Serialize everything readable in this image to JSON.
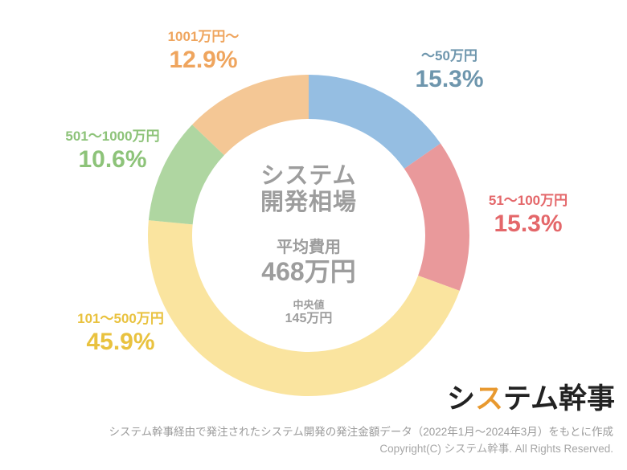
{
  "chart_data": {
    "type": "pie",
    "donut": true,
    "start_angle_deg": 0,
    "direction": "clockwise",
    "title": "システム開発相場",
    "segments": [
      {
        "label": "～50万円",
        "value": 15.3,
        "pct_text": "15.3%",
        "color": "#95bee2",
        "label_color": "#6e96ad"
      },
      {
        "label": "51～100万円",
        "value": 15.3,
        "pct_text": "15.3%",
        "color": "#e9999b",
        "label_color": "#e4676a"
      },
      {
        "label": "101～500万円",
        "value": 45.9,
        "pct_text": "45.9%",
        "color": "#fae49f",
        "label_color": "#e9c23f"
      },
      {
        "label": "501～1000万円",
        "value": 10.6,
        "pct_text": "10.6%",
        "color": "#afd6a1",
        "label_color": "#8dc379"
      },
      {
        "label": "1001万円～",
        "value": 12.9,
        "pct_text": "12.9%",
        "color": "#f4c795",
        "label_color": "#efa55e"
      }
    ],
    "center": {
      "title_line1": "システム",
      "title_line2": "開発相場",
      "average_label": "平均費用",
      "average_value": "468万円",
      "median_label": "中央値",
      "median_value": "145万円",
      "text_color": "#9d9d9d"
    }
  },
  "logo": {
    "part1": "シ",
    "part2": "ス",
    "part3": "テム幹事",
    "main_color": "#222222",
    "accent_color": "#e8992f"
  },
  "footer": {
    "source_note": "システム幹事経由で発注されたシステム開発の発注金額データ（2022年1月～2024年3月）をもとに作成",
    "copyright": "Copyright(C) システム幹事. All Rights Reserved.",
    "source_color": "#9b9b9b",
    "copyright_color": "#a6a6a6"
  }
}
